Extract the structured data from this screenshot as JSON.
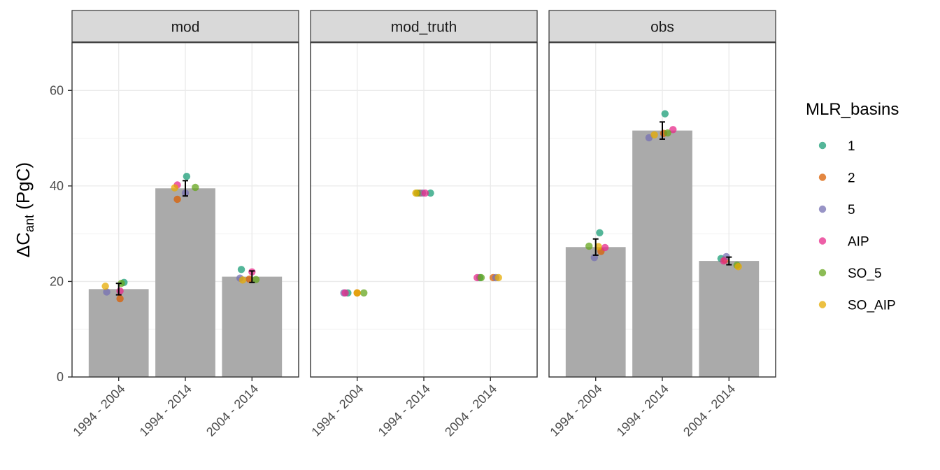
{
  "chart_data": {
    "type": "bar",
    "facet_var": "data_source",
    "facets": [
      "mod",
      "mod_truth",
      "obs"
    ],
    "categories": [
      "1994 - 2004",
      "1994 - 2014",
      "2004 - 2014"
    ],
    "ylabel": {
      "base": "ΔC",
      "sub": "ant",
      "rest": " (PgC)"
    },
    "ylim": [
      0,
      70
    ],
    "yticks": [
      0,
      20,
      40,
      60
    ],
    "grid": true,
    "bar_color": "#aaaaaa",
    "bars": [
      [
        18.4,
        39.5,
        21.0
      ],
      [
        null,
        null,
        null
      ],
      [
        27.2,
        51.6,
        24.3
      ]
    ],
    "errorbars": [
      [
        [
          17.2,
          19.6
        ],
        [
          37.9,
          41.1
        ],
        [
          19.8,
          22.2
        ]
      ],
      [
        null,
        null,
        null
      ],
      [
        [
          25.5,
          28.9
        ],
        [
          49.8,
          53.4
        ],
        [
          23.5,
          25.1
        ]
      ]
    ],
    "legend": {
      "title": "MLR_basins",
      "position": "right",
      "entries": [
        {
          "label": "1",
          "color": "#1b9e77"
        },
        {
          "label": "2",
          "color": "#d95f02"
        },
        {
          "label": "5",
          "color": "#7570b3"
        },
        {
          "label": "AIP",
          "color": "#e7298a"
        },
        {
          "label": "SO_5",
          "color": "#66a61e"
        },
        {
          "label": "SO_AIP",
          "color": "#e6ab02"
        }
      ]
    },
    "points": [
      [
        [
          {
            "series": "1",
            "dx": 0.08,
            "y": 19.8
          },
          {
            "series": "2",
            "dx": 0.02,
            "y": 16.4
          },
          {
            "series": "5",
            "dx": -0.18,
            "y": 17.8
          },
          {
            "series": "AIP",
            "dx": 0.02,
            "y": 18.0
          },
          {
            "series": "SO_5",
            "dx": 0.04,
            "y": 19.6
          },
          {
            "series": "SO_AIP",
            "dx": -0.2,
            "y": 19.0
          }
        ],
        [
          {
            "series": "1",
            "dx": 0.02,
            "y": 42.0
          },
          {
            "series": "2",
            "dx": -0.12,
            "y": 37.2
          },
          {
            "series": "5",
            "dx": 0.0,
            "y": 38.5
          },
          {
            "series": "AIP",
            "dx": -0.12,
            "y": 40.2
          },
          {
            "series": "SO_5",
            "dx": 0.15,
            "y": 39.7
          },
          {
            "series": "SO_AIP",
            "dx": -0.16,
            "y": 39.6
          }
        ],
        [
          {
            "series": "1",
            "dx": -0.16,
            "y": 22.5
          },
          {
            "series": "2",
            "dx": -0.04,
            "y": 20.5
          },
          {
            "series": "5",
            "dx": -0.18,
            "y": 20.7
          },
          {
            "series": "AIP",
            "dx": 0.0,
            "y": 22.0
          },
          {
            "series": "SO_5",
            "dx": 0.06,
            "y": 20.4
          },
          {
            "series": "SO_AIP",
            "dx": -0.14,
            "y": 20.3
          }
        ]
      ],
      [
        [
          {
            "series": "1",
            "dx": -0.14,
            "y": 17.6
          },
          {
            "series": "2",
            "dx": 0.0,
            "y": 17.6
          },
          {
            "series": "5",
            "dx": -0.2,
            "y": 17.6
          },
          {
            "series": "AIP",
            "dx": -0.18,
            "y": 17.6
          },
          {
            "series": "SO_5",
            "dx": 0.1,
            "y": 17.6
          },
          {
            "series": "SO_AIP",
            "dx": 0.0,
            "y": 17.6
          }
        ],
        [
          {
            "series": "1",
            "dx": 0.1,
            "y": 38.5
          },
          {
            "series": "2",
            "dx": -0.06,
            "y": 38.5
          },
          {
            "series": "5",
            "dx": -0.02,
            "y": 38.5
          },
          {
            "series": "AIP",
            "dx": 0.02,
            "y": 38.5
          },
          {
            "series": "SO_5",
            "dx": -0.1,
            "y": 38.5
          },
          {
            "series": "SO_AIP",
            "dx": -0.12,
            "y": 38.5
          }
        ],
        [
          {
            "series": "1",
            "dx": -0.16,
            "y": 20.8
          },
          {
            "series": "2",
            "dx": 0.04,
            "y": 20.8
          },
          {
            "series": "5",
            "dx": 0.08,
            "y": 20.8
          },
          {
            "series": "AIP",
            "dx": -0.2,
            "y": 20.8
          },
          {
            "series": "SO_5",
            "dx": -0.14,
            "y": 20.8
          },
          {
            "series": "SO_AIP",
            "dx": 0.12,
            "y": 20.8
          }
        ]
      ],
      [
        [
          {
            "series": "1",
            "dx": 0.06,
            "y": 30.2
          },
          {
            "series": "2",
            "dx": 0.08,
            "y": 26.3
          },
          {
            "series": "5",
            "dx": -0.02,
            "y": 25.0
          },
          {
            "series": "AIP",
            "dx": 0.14,
            "y": 27.1
          },
          {
            "series": "SO_5",
            "dx": -0.1,
            "y": 27.4
          },
          {
            "series": "SO_AIP",
            "dx": 0.04,
            "y": 27.3
          }
        ],
        [
          {
            "series": "1",
            "dx": 0.04,
            "y": 55.1
          },
          {
            "series": "2",
            "dx": 0.02,
            "y": 51.0
          },
          {
            "series": "5",
            "dx": -0.2,
            "y": 50.1
          },
          {
            "series": "AIP",
            "dx": 0.16,
            "y": 51.8
          },
          {
            "series": "SO_5",
            "dx": 0.08,
            "y": 51.1
          },
          {
            "series": "SO_AIP",
            "dx": -0.12,
            "y": 50.7
          }
        ],
        [
          {
            "series": "1",
            "dx": -0.12,
            "y": 24.8
          },
          {
            "series": "2",
            "dx": -0.06,
            "y": 24.5
          },
          {
            "series": "5",
            "dx": -0.04,
            "y": 25.2
          },
          {
            "series": "AIP",
            "dx": -0.08,
            "y": 24.3
          },
          {
            "series": "SO_5",
            "dx": 0.12,
            "y": 23.4
          },
          {
            "series": "SO_AIP",
            "dx": 0.14,
            "y": 23.1
          }
        ]
      ]
    ]
  }
}
